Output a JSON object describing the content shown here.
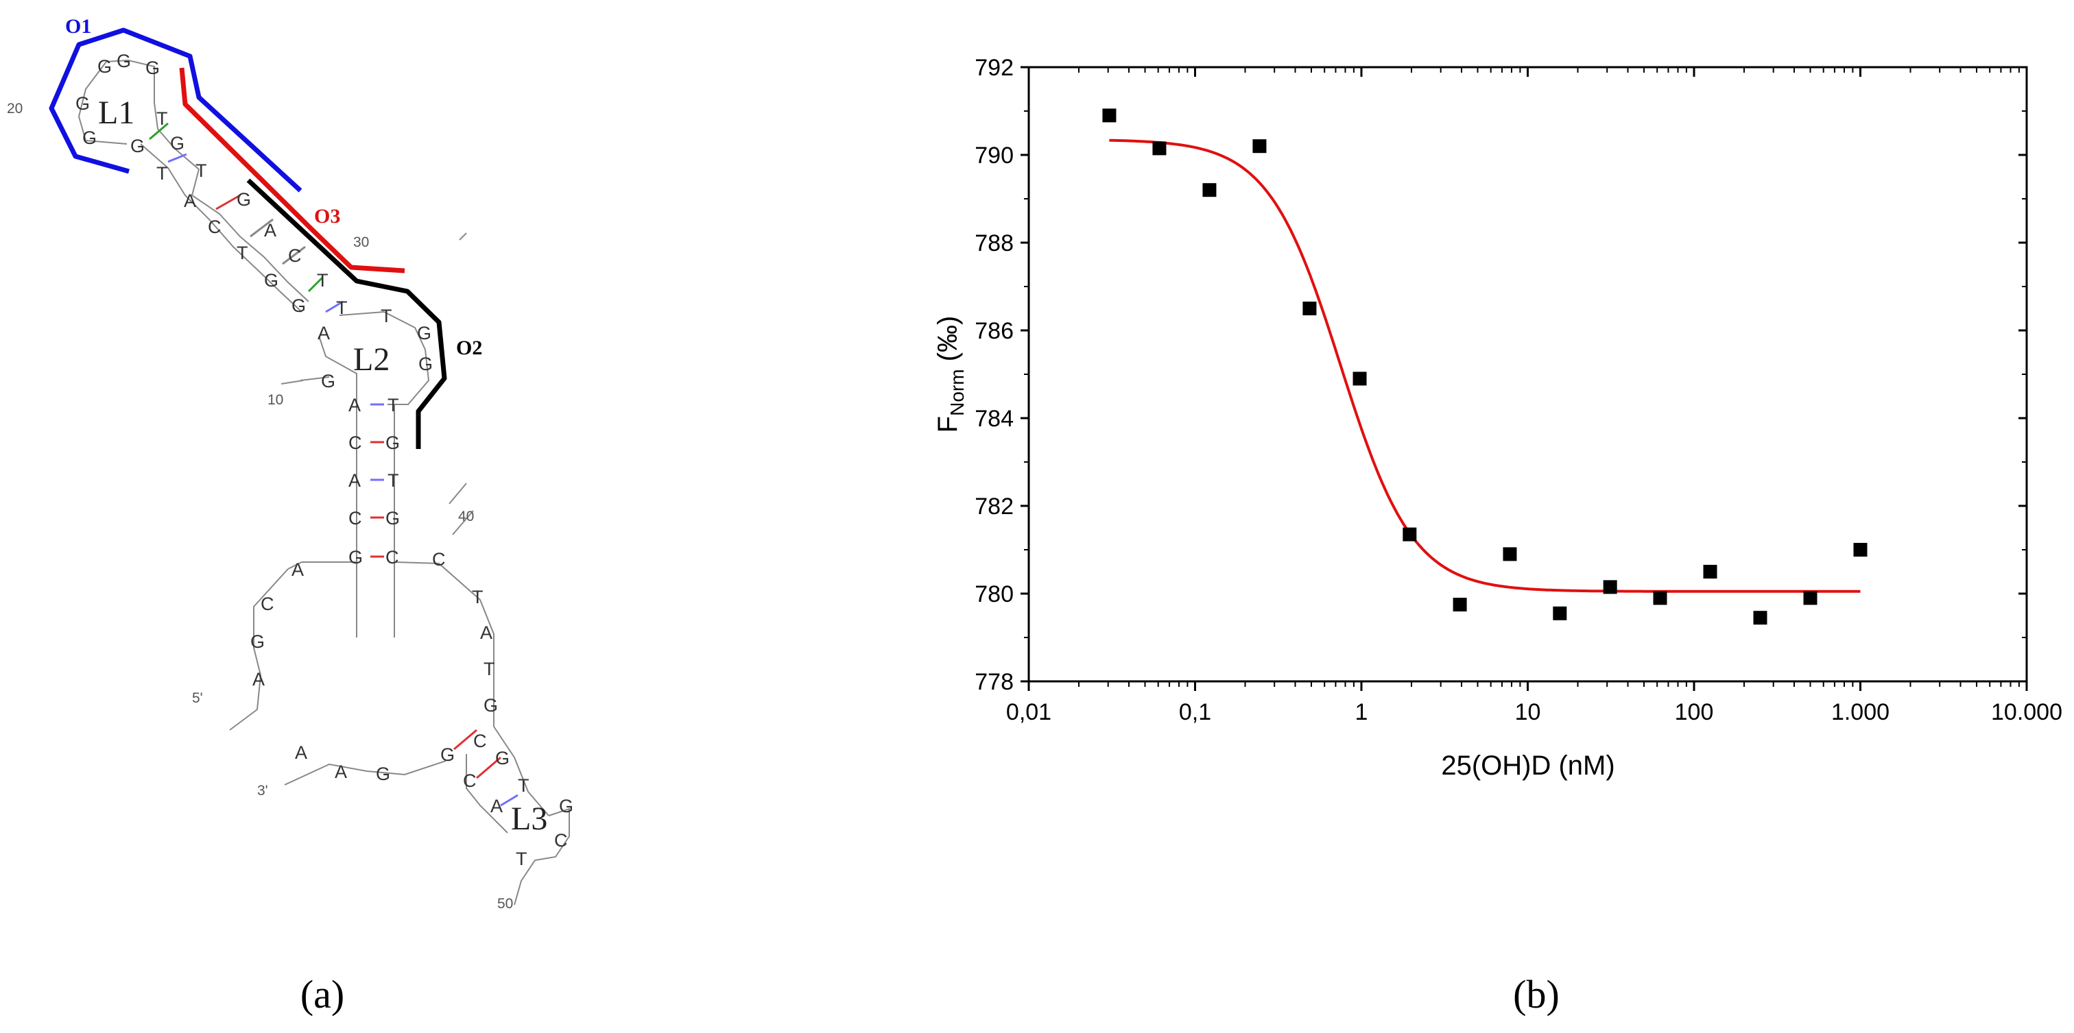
{
  "panels": {
    "a": "(a)",
    "b": "(b)"
  },
  "structure": {
    "loops": {
      "L1": "L1",
      "L2": "L2",
      "L3": "L3"
    },
    "oligos": [
      {
        "label": "O1",
        "color": "#1010e0"
      },
      {
        "label": "O2",
        "color": "#000000"
      },
      {
        "label": "O3",
        "color": "#e01010"
      }
    ],
    "numbers": {
      "n20": "20",
      "n30": "30",
      "n10": "10",
      "n40": "40",
      "n50": "50",
      "p5": "5'",
      "p3": "3'"
    },
    "nucleotides": {
      "l1_g1": "G",
      "l1_g2": "G",
      "l1_g3": "G",
      "l1_g4": "G",
      "l1_g5": "G",
      "l1_t": "T",
      "s1_g_left": "G",
      "s1_g_right": "G",
      "s1_t_left": "T",
      "s1_t_right": "T",
      "s1_a": "A",
      "s1_g": "G",
      "s1_c": "C",
      "s1_a2": "A",
      "s1_t2": "T",
      "s1_c2": "C",
      "s1_g2": "G",
      "s1_t3": "T",
      "s1_g3": "G",
      "s1_t4": "T",
      "l2_t": "T",
      "l2_g1": "G",
      "l2_g2": "G",
      "l2_a": "A",
      "l2_g3": "G",
      "s2_a": "A",
      "s2_t": "T",
      "s2_c": "C",
      "s2_g": "G",
      "s2_a2": "A",
      "s2_t2": "T",
      "s2_c2": "C",
      "s2_g2": "G",
      "s2_g3": "G",
      "s2_c3": "C",
      "j_a1": "A",
      "j_c1": "C",
      "j_g1": "G",
      "j_a2": "A",
      "j_c2": "C",
      "j_t1": "T",
      "j_a3": "A",
      "j_t2": "T",
      "j_g2": "G",
      "s3_c": "C",
      "s3_g": "G",
      "s3_g2": "G",
      "s3_t": "T",
      "s3_c2": "C",
      "s3_a": "A",
      "t_a1": "A",
      "t_a2": "A",
      "t_g": "G",
      "l3_g": "G",
      "l3_c": "C",
      "l3_t": "T"
    }
  },
  "chart_data": {
    "type": "scatter",
    "xlabel_main": "25(OH)D (nM)",
    "ylabel_main": "F",
    "ylabel_sub": "Norm",
    "ylabel_unit": " (‰)",
    "xscale": "log",
    "xlim": [
      0.01,
      10000
    ],
    "ylim": [
      778,
      792
    ],
    "xticks": [
      0.01,
      0.1,
      1,
      10,
      100,
      1000,
      10000
    ],
    "xtick_labels": [
      "0,01",
      "0,1",
      "1",
      "10",
      "100",
      "1.000",
      "10.000"
    ],
    "yticks": [
      778,
      780,
      782,
      784,
      786,
      788,
      790,
      792
    ],
    "ytick_labels": [
      "778",
      "780",
      "782",
      "784",
      "786",
      "788",
      "790",
      "792"
    ],
    "grid": false,
    "points": {
      "x": [
        0.0305,
        0.061,
        0.122,
        0.244,
        0.488,
        0.977,
        1.95,
        3.91,
        7.81,
        15.6,
        31.3,
        62.5,
        125,
        250,
        500,
        1000
      ],
      "y": [
        790.9,
        790.15,
        789.2,
        790.2,
        786.5,
        784.9,
        781.35,
        779.75,
        780.9,
        779.55,
        780.15,
        779.9,
        780.5,
        779.45,
        779.9,
        781.0
      ]
    },
    "fit": {
      "color": "#e01010",
      "model": "sigmoid",
      "top": 790.35,
      "bottom": 780.05,
      "ec50": 0.75,
      "hill": 2.0,
      "x_range": [
        0.0305,
        1000
      ]
    },
    "marker_color": "#000000"
  }
}
